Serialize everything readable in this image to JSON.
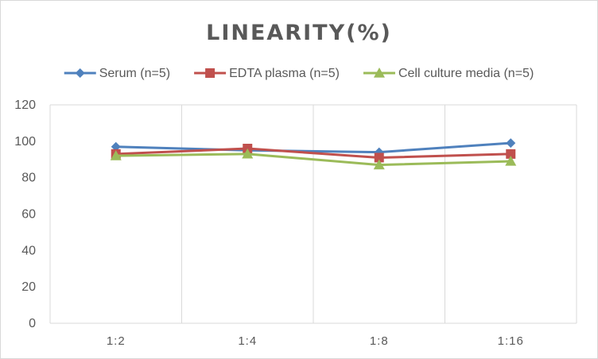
{
  "chart_data": {
    "type": "line",
    "title": "LINEARITY(%)",
    "xlabel": "",
    "ylabel": "",
    "categories": [
      "1:2",
      "1:4",
      "1:8",
      "1:16"
    ],
    "ylim": [
      0,
      120
    ],
    "yticks": [
      0,
      20,
      40,
      60,
      80,
      100,
      120
    ],
    "grid": "vertical",
    "legend": "top",
    "series": [
      {
        "name": "Serum (n=5)",
        "values": [
          97,
          95,
          94,
          99
        ],
        "color": "#4f81bd",
        "marker": "diamond"
      },
      {
        "name": "EDTA plasma (n=5)",
        "values": [
          93,
          96,
          91,
          93
        ],
        "color": "#c0504d",
        "marker": "square"
      },
      {
        "name": "Cell culture media (n=5)",
        "values": [
          92,
          93,
          87,
          89
        ],
        "color": "#9bbb59",
        "marker": "triangle"
      }
    ]
  }
}
